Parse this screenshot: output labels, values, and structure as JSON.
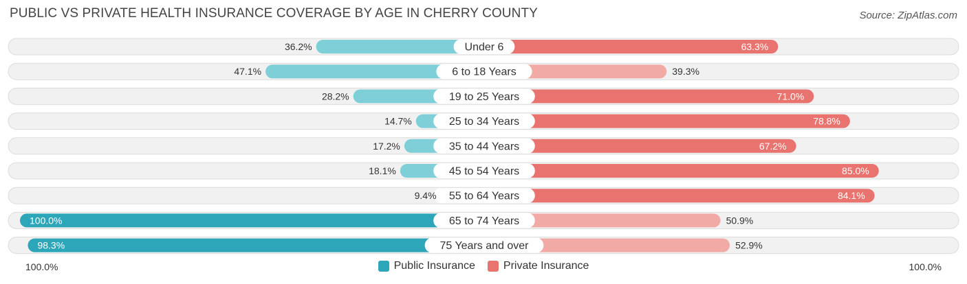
{
  "title": "PUBLIC VS PRIVATE HEALTH INSURANCE COVERAGE BY AGE IN CHERRY COUNTY",
  "source": "Source: ZipAtlas.com",
  "colors": {
    "public_dark": "#2ca6b8",
    "public_light": "#7fcfd8",
    "private_dark": "#e8736f",
    "private_light": "#f2aaa7",
    "row_bg": "#f1f1f1",
    "row_border": "#dcdcdc"
  },
  "axis": {
    "left_label": "100.0%",
    "right_label": "100.0%"
  },
  "legend": [
    {
      "label": "Public Insurance",
      "color": "#2ca6b8"
    },
    {
      "label": "Private Insurance",
      "color": "#e8736f"
    }
  ],
  "chart_data": {
    "type": "bar",
    "orientation": "horizontal-diverging",
    "title": "PUBLIC VS PRIVATE HEALTH INSURANCE COVERAGE BY AGE IN CHERRY COUNTY",
    "categories": [
      "Under 6",
      "6 to 18 Years",
      "19 to 25 Years",
      "25 to 34 Years",
      "35 to 44 Years",
      "45 to 54 Years",
      "55 to 64 Years",
      "65 to 74 Years",
      "75 Years and over"
    ],
    "series": [
      {
        "name": "Public Insurance",
        "values": [
          36.2,
          47.1,
          28.2,
          14.7,
          17.2,
          18.1,
          9.4,
          100.0,
          98.3
        ],
        "labels": [
          "36.2%",
          "47.1%",
          "28.2%",
          "14.7%",
          "17.2%",
          "18.1%",
          "9.4%",
          "100.0%",
          "98.3%"
        ]
      },
      {
        "name": "Private Insurance",
        "values": [
          63.3,
          39.3,
          71.0,
          78.8,
          67.2,
          85.0,
          84.1,
          50.9,
          52.9
        ],
        "labels": [
          "63.3%",
          "39.3%",
          "71.0%",
          "78.8%",
          "67.2%",
          "85.0%",
          "84.1%",
          "50.9%",
          "52.9%"
        ]
      }
    ],
    "xlim": [
      -100,
      100
    ],
    "axis_labels": [
      "100.0%",
      "100.0%"
    ],
    "legend_position": "bottom-center"
  }
}
